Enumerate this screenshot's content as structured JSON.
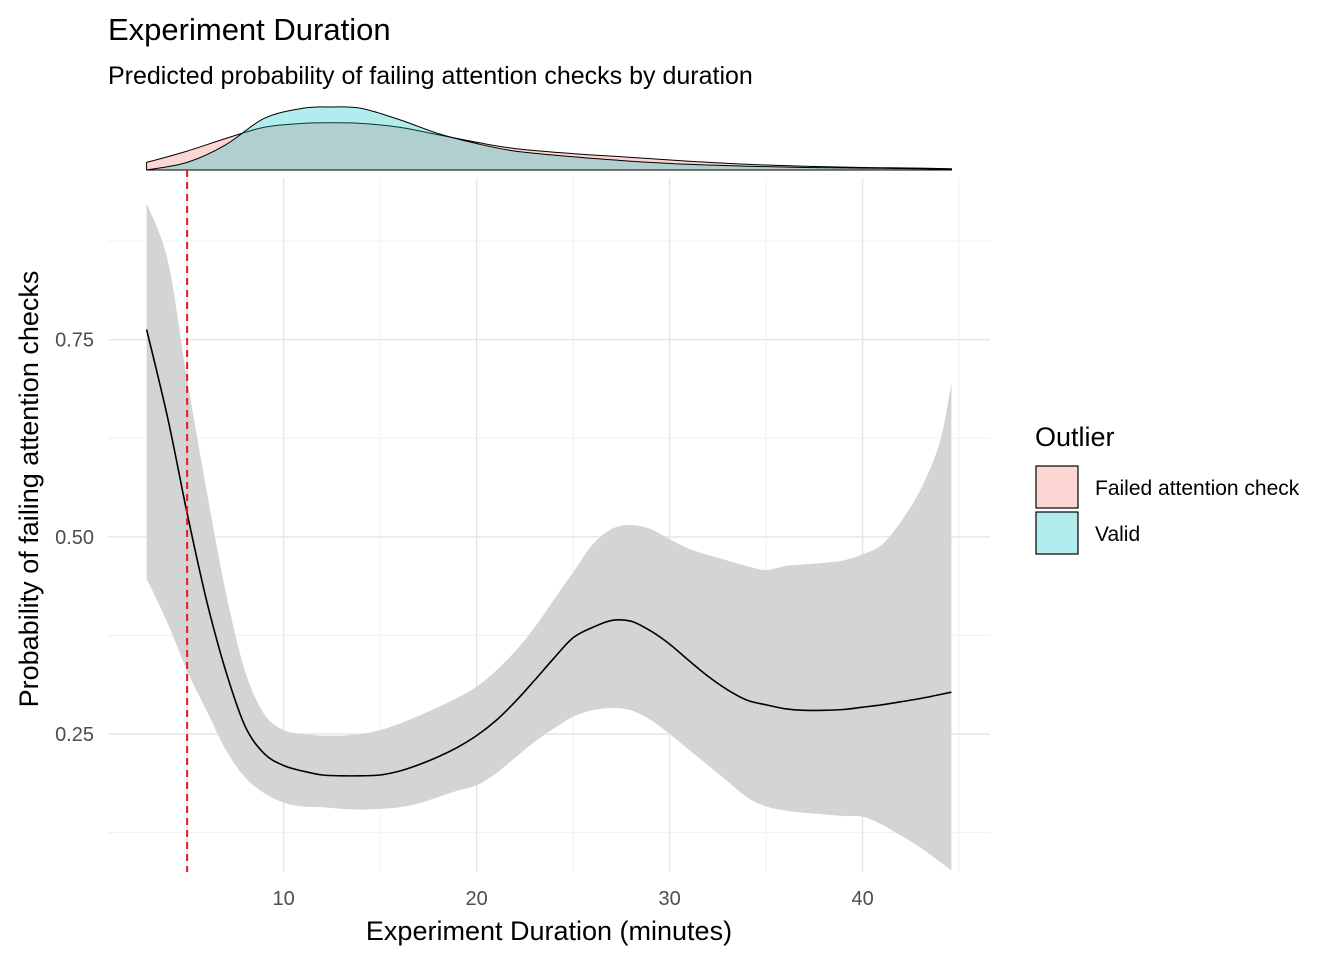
{
  "chart_data": {
    "type": "line",
    "title": "Experiment Duration",
    "subtitle": "Predicted probability of failing attention checks by duration",
    "xlabel": "Experiment Duration (minutes)",
    "ylabel": "Probability of failing attention checks",
    "xlim": [
      0.9,
      46.6
    ],
    "ylim": [
      0.075,
      0.955
    ],
    "x_ticks": [
      10,
      20,
      30,
      40
    ],
    "y_ticks": [
      0.25,
      0.5,
      0.75
    ],
    "y_tick_labels": [
      "0.25",
      "0.50",
      "0.75"
    ],
    "grid": true,
    "threshold_line": {
      "x": 5,
      "color": "#e41a1c",
      "style": "dashed"
    },
    "fit": {
      "x": [
        2.9,
        4,
        5,
        6,
        7,
        8,
        9,
        10,
        11,
        12,
        13,
        14,
        15,
        16,
        17,
        18,
        19,
        20,
        21,
        22,
        23,
        24,
        25,
        26,
        27,
        28,
        29,
        30,
        31,
        32,
        33,
        34,
        35,
        36,
        37,
        38,
        39,
        40,
        41,
        42,
        43,
        44,
        44.6
      ],
      "y": [
        0.763,
        0.65,
        0.53,
        0.42,
        0.33,
        0.26,
        0.225,
        0.21,
        0.203,
        0.198,
        0.197,
        0.197,
        0.198,
        0.203,
        0.211,
        0.221,
        0.233,
        0.248,
        0.267,
        0.291,
        0.318,
        0.346,
        0.372,
        0.385,
        0.394,
        0.393,
        0.381,
        0.364,
        0.343,
        0.323,
        0.306,
        0.293,
        0.287,
        0.282,
        0.28,
        0.28,
        0.281,
        0.284,
        0.287,
        0.291,
        0.295,
        0.3,
        0.303
      ],
      "lower": [
        0.447,
        0.39,
        0.33,
        0.28,
        0.23,
        0.195,
        0.175,
        0.163,
        0.158,
        0.157,
        0.155,
        0.154,
        0.155,
        0.157,
        0.162,
        0.17,
        0.178,
        0.185,
        0.2,
        0.22,
        0.24,
        0.257,
        0.272,
        0.28,
        0.283,
        0.28,
        0.268,
        0.25,
        0.23,
        0.21,
        0.19,
        0.17,
        0.158,
        0.153,
        0.15,
        0.148,
        0.146,
        0.145,
        0.135,
        0.121,
        0.106,
        0.088,
        0.077
      ],
      "upper": [
        0.923,
        0.85,
        0.7,
        0.56,
        0.43,
        0.33,
        0.275,
        0.255,
        0.25,
        0.248,
        0.248,
        0.25,
        0.255,
        0.263,
        0.273,
        0.284,
        0.296,
        0.31,
        0.33,
        0.355,
        0.385,
        0.42,
        0.455,
        0.49,
        0.51,
        0.515,
        0.51,
        0.497,
        0.485,
        0.477,
        0.47,
        0.463,
        0.458,
        0.463,
        0.465,
        0.467,
        0.47,
        0.478,
        0.49,
        0.52,
        0.56,
        0.62,
        0.695
      ]
    },
    "density": {
      "x": [
        2.9,
        5,
        7,
        9,
        11,
        12.5,
        14,
        16,
        18,
        20,
        22,
        25,
        28,
        31,
        34,
        37,
        40,
        43,
        44.6
      ],
      "series": [
        {
          "name": "Failed attention check",
          "color": "#f8766d",
          "values": [
            0.12,
            0.3,
            0.5,
            0.68,
            0.74,
            0.75,
            0.74,
            0.68,
            0.56,
            0.44,
            0.34,
            0.26,
            0.2,
            0.14,
            0.09,
            0.06,
            0.04,
            0.03,
            0.02
          ]
        },
        {
          "name": "Valid",
          "color": "#00bfc4",
          "values": [
            0.0,
            0.12,
            0.4,
            0.82,
            0.98,
            1.0,
            0.98,
            0.8,
            0.58,
            0.42,
            0.3,
            0.21,
            0.14,
            0.09,
            0.06,
            0.04,
            0.03,
            0.02,
            0.01
          ]
        }
      ]
    },
    "legend": {
      "title": "Outlier",
      "placement": "right",
      "items": [
        {
          "label": "Failed attention check",
          "color": "#f8766d"
        },
        {
          "label": "Valid",
          "color": "#00bfc4"
        }
      ]
    }
  }
}
